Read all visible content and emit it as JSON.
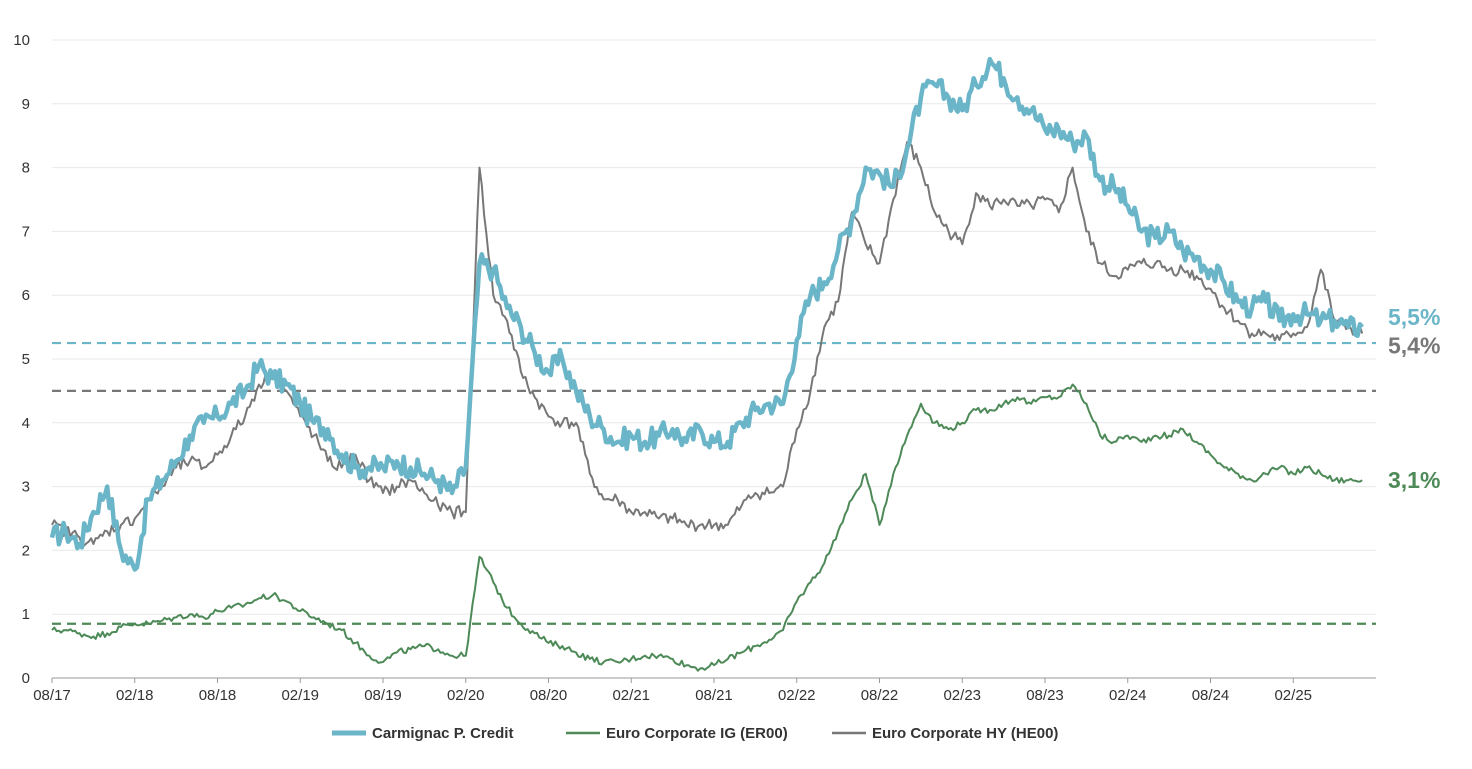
{
  "chart_data": {
    "type": "line",
    "title": "",
    "xlabel": "",
    "ylabel": "",
    "ylim": [
      0,
      10
    ],
    "yticks": [
      "0",
      "1",
      "2",
      "3",
      "4",
      "5",
      "6",
      "7",
      "8",
      "9",
      "10"
    ],
    "xlim": [
      "2017-08",
      "2025-08"
    ],
    "xticks": [
      "08/17",
      "02/18",
      "08/18",
      "02/19",
      "08/19",
      "02/20",
      "08/20",
      "02/21",
      "08/21",
      "02/22",
      "08/22",
      "02/23",
      "08/23",
      "02/24",
      "08/24",
      "02/25"
    ],
    "grid": "horizontal",
    "legend_position": "bottom",
    "series": [
      {
        "name": "Carmignac P. Credit",
        "color": "#6bb5c9",
        "end_label": "5,5%",
        "reference_line": 5.25,
        "x": [
          "2017-08",
          "2017-09",
          "2017-10",
          "2017-11",
          "2017-12",
          "2018-01",
          "2018-02",
          "2018-03",
          "2018-04",
          "2018-05",
          "2018-06",
          "2018-07",
          "2018-08",
          "2018-09",
          "2018-10",
          "2018-11",
          "2018-12",
          "2019-01",
          "2019-02",
          "2019-03",
          "2019-04",
          "2019-05",
          "2019-06",
          "2019-07",
          "2019-08",
          "2019-09",
          "2019-10",
          "2019-11",
          "2019-12",
          "2020-01",
          "2020-02",
          "2020-03",
          "2020-04",
          "2020-05",
          "2020-06",
          "2020-07",
          "2020-08",
          "2020-09",
          "2020-10",
          "2020-11",
          "2020-12",
          "2021-01",
          "2021-02",
          "2021-03",
          "2021-04",
          "2021-05",
          "2021-06",
          "2021-07",
          "2021-08",
          "2021-09",
          "2021-10",
          "2021-11",
          "2021-12",
          "2022-01",
          "2022-02",
          "2022-03",
          "2022-04",
          "2022-05",
          "2022-06",
          "2022-07",
          "2022-08",
          "2022-09",
          "2022-10",
          "2022-11",
          "2022-12",
          "2023-01",
          "2023-02",
          "2023-03",
          "2023-04",
          "2023-05",
          "2023-06",
          "2023-07",
          "2023-08",
          "2023-09",
          "2023-10",
          "2023-11",
          "2023-12",
          "2024-01",
          "2024-02",
          "2024-03",
          "2024-04",
          "2024-05",
          "2024-06",
          "2024-07",
          "2024-08",
          "2024-09",
          "2024-10",
          "2024-11",
          "2024-12",
          "2025-01",
          "2025-02",
          "2025-03",
          "2025-04",
          "2025-05",
          "2025-06",
          "2025-07"
        ],
        "values": [
          2.2,
          2.3,
          2.1,
          2.6,
          3.0,
          2.0,
          1.7,
          2.8,
          3.1,
          3.4,
          3.8,
          4.0,
          4.1,
          4.3,
          4.5,
          4.9,
          4.7,
          4.6,
          4.3,
          4.0,
          3.9,
          3.5,
          3.3,
          3.3,
          3.3,
          3.4,
          3.3,
          3.2,
          3.1,
          2.9,
          3.3,
          6.5,
          6.4,
          5.8,
          5.5,
          5.1,
          4.8,
          5.0,
          4.5,
          4.1,
          3.9,
          3.7,
          3.8,
          3.7,
          3.8,
          3.9,
          3.7,
          3.9,
          3.7,
          3.7,
          4.0,
          4.2,
          4.3,
          4.3,
          5.3,
          6.0,
          6.2,
          6.7,
          7.2,
          8.0,
          7.9,
          7.7,
          8.3,
          9.1,
          9.3,
          9.1,
          8.9,
          9.3,
          9.7,
          9.4,
          9.1,
          8.9,
          8.6,
          8.6,
          8.4,
          8.5,
          7.8,
          7.7,
          7.4,
          7.0,
          6.9,
          7.0,
          6.7,
          6.6,
          6.4,
          6.2,
          5.9,
          5.8,
          5.9,
          5.6,
          5.7,
          5.7,
          5.6,
          5.6,
          5.5,
          5.5
        ]
      },
      {
        "name": "Euro Corporate IG (ER00)",
        "color": "#4e8a58",
        "end_label": "3,1%",
        "reference_line": 0.85,
        "x": [
          "2017-08",
          "2017-09",
          "2017-10",
          "2017-11",
          "2017-12",
          "2018-01",
          "2018-02",
          "2018-03",
          "2018-04",
          "2018-05",
          "2018-06",
          "2018-07",
          "2018-08",
          "2018-09",
          "2018-10",
          "2018-11",
          "2018-12",
          "2019-01",
          "2019-02",
          "2019-03",
          "2019-04",
          "2019-05",
          "2019-06",
          "2019-07",
          "2019-08",
          "2019-09",
          "2019-10",
          "2019-11",
          "2019-12",
          "2020-01",
          "2020-02",
          "2020-03",
          "2020-04",
          "2020-05",
          "2020-06",
          "2020-07",
          "2020-08",
          "2020-09",
          "2020-10",
          "2020-11",
          "2020-12",
          "2021-01",
          "2021-02",
          "2021-03",
          "2021-04",
          "2021-05",
          "2021-06",
          "2021-07",
          "2021-08",
          "2021-09",
          "2021-10",
          "2021-11",
          "2021-12",
          "2022-01",
          "2022-02",
          "2022-03",
          "2022-04",
          "2022-05",
          "2022-06",
          "2022-07",
          "2022-08",
          "2022-09",
          "2022-10",
          "2022-11",
          "2022-12",
          "2023-01",
          "2023-02",
          "2023-03",
          "2023-04",
          "2023-05",
          "2023-06",
          "2023-07",
          "2023-08",
          "2023-09",
          "2023-10",
          "2023-11",
          "2023-12",
          "2024-01",
          "2024-02",
          "2024-03",
          "2024-04",
          "2024-05",
          "2024-06",
          "2024-07",
          "2024-08",
          "2024-09",
          "2024-10",
          "2024-11",
          "2024-12",
          "2025-01",
          "2025-02",
          "2025-03",
          "2025-04",
          "2025-05",
          "2025-06",
          "2025-07"
        ],
        "values": [
          0.75,
          0.75,
          0.7,
          0.65,
          0.7,
          0.8,
          0.85,
          0.85,
          0.9,
          0.95,
          1.0,
          0.95,
          1.05,
          1.1,
          1.15,
          1.25,
          1.3,
          1.2,
          1.05,
          0.95,
          0.85,
          0.75,
          0.55,
          0.35,
          0.25,
          0.4,
          0.45,
          0.5,
          0.45,
          0.35,
          0.35,
          1.9,
          1.5,
          1.1,
          0.85,
          0.7,
          0.55,
          0.5,
          0.4,
          0.3,
          0.25,
          0.25,
          0.3,
          0.35,
          0.35,
          0.3,
          0.2,
          0.15,
          0.2,
          0.3,
          0.4,
          0.5,
          0.6,
          0.75,
          1.2,
          1.5,
          1.8,
          2.3,
          2.8,
          3.2,
          2.4,
          3.2,
          3.8,
          4.3,
          4.0,
          3.9,
          4.0,
          4.2,
          4.2,
          4.3,
          4.4,
          4.3,
          4.4,
          4.4,
          4.6,
          4.3,
          3.8,
          3.7,
          3.8,
          3.7,
          3.8,
          3.8,
          3.9,
          3.7,
          3.5,
          3.3,
          3.2,
          3.1,
          3.2,
          3.3,
          3.2,
          3.3,
          3.2,
          3.1,
          3.1,
          3.1
        ]
      },
      {
        "name": "Euro Corporate HY (HE00)",
        "color": "#777777",
        "end_label": "5,4%",
        "reference_line": 4.5,
        "x": [
          "2017-08",
          "2017-09",
          "2017-10",
          "2017-11",
          "2017-12",
          "2018-01",
          "2018-02",
          "2018-03",
          "2018-04",
          "2018-05",
          "2018-06",
          "2018-07",
          "2018-08",
          "2018-09",
          "2018-10",
          "2018-11",
          "2018-12",
          "2019-01",
          "2019-02",
          "2019-03",
          "2019-04",
          "2019-05",
          "2019-06",
          "2019-07",
          "2019-08",
          "2019-09",
          "2019-10",
          "2019-11",
          "2019-12",
          "2020-01",
          "2020-02",
          "2020-03",
          "2020-04",
          "2020-05",
          "2020-06",
          "2020-07",
          "2020-08",
          "2020-09",
          "2020-10",
          "2020-11",
          "2020-12",
          "2021-01",
          "2021-02",
          "2021-03",
          "2021-04",
          "2021-05",
          "2021-06",
          "2021-07",
          "2021-08",
          "2021-09",
          "2021-10",
          "2021-11",
          "2021-12",
          "2022-01",
          "2022-02",
          "2022-03",
          "2022-04",
          "2022-05",
          "2022-06",
          "2022-07",
          "2022-08",
          "2022-09",
          "2022-10",
          "2022-11",
          "2022-12",
          "2023-01",
          "2023-02",
          "2023-03",
          "2023-04",
          "2023-05",
          "2023-06",
          "2023-07",
          "2023-08",
          "2023-09",
          "2023-10",
          "2023-11",
          "2023-12",
          "2024-01",
          "2024-02",
          "2024-03",
          "2024-04",
          "2024-05",
          "2024-06",
          "2024-07",
          "2024-08",
          "2024-09",
          "2024-10",
          "2024-11",
          "2024-12",
          "2025-01",
          "2025-02",
          "2025-03",
          "2025-04",
          "2025-05",
          "2025-06",
          "2025-07"
        ],
        "values": [
          2.4,
          2.3,
          2.2,
          2.1,
          2.3,
          2.4,
          2.5,
          2.8,
          3.0,
          3.3,
          3.4,
          3.3,
          3.5,
          3.8,
          4.1,
          4.6,
          4.8,
          4.5,
          4.1,
          3.8,
          3.4,
          3.3,
          3.5,
          3.1,
          2.9,
          3.0,
          3.1,
          2.9,
          2.7,
          2.6,
          2.6,
          8.0,
          6.0,
          5.6,
          4.8,
          4.4,
          4.1,
          4.0,
          4.0,
          3.2,
          2.8,
          2.8,
          2.6,
          2.6,
          2.5,
          2.5,
          2.4,
          2.4,
          2.4,
          2.4,
          2.7,
          2.9,
          2.9,
          3.0,
          3.9,
          4.5,
          5.5,
          5.9,
          7.3,
          6.8,
          6.5,
          7.5,
          8.4,
          8.0,
          7.3,
          7.0,
          6.8,
          7.6,
          7.4,
          7.5,
          7.4,
          7.4,
          7.5,
          7.3,
          8.0,
          7.0,
          6.5,
          6.3,
          6.4,
          6.5,
          6.5,
          6.4,
          6.4,
          6.3,
          6.1,
          5.8,
          5.6,
          5.4,
          5.4,
          5.3,
          5.4,
          5.5,
          6.4,
          5.6,
          5.5,
          5.4
        ]
      }
    ]
  }
}
